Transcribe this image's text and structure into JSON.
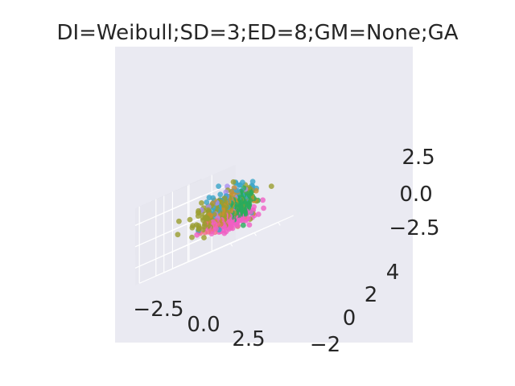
{
  "chart_data": {
    "type": "scatter",
    "projection": "3d",
    "title": "DI=Weibull;SD=3;ED=8;GM=None;GA",
    "xlabel": "",
    "ylabel": "",
    "zlabel": "",
    "x_ticks": [
      "−2.5",
      "0.0",
      "2.5"
    ],
    "y_ticks": [
      "−2",
      "0",
      "2",
      "4"
    ],
    "z_ticks": [
      "−2.5",
      "0.0",
      "2.5"
    ],
    "xlim": [
      -5,
      5.5
    ],
    "ylim": [
      -2.5,
      5.5
    ],
    "zlim": [
      -4.5,
      4.5
    ],
    "grid": true,
    "colors": {
      "background": "#eaeaf2",
      "grid": "#ffffff",
      "text": "#262626"
    },
    "series": [
      {
        "color": "#2bab5c",
        "cx": -3.0,
        "cy": 0.5,
        "cz": -0.6,
        "sx": 0.35,
        "sy": 0.5,
        "sz": 0.7,
        "count": 140
      },
      {
        "color": "#3aa5c8",
        "cx": -1.3,
        "cy": 0.9,
        "cz": 0.3,
        "sx": 1.1,
        "sy": 0.9,
        "sz": 0.9,
        "count": 80
      },
      {
        "color": "#9a9e2e",
        "cx": -1.0,
        "cy": 0.8,
        "cz": -0.3,
        "sx": 1.4,
        "sy": 1.0,
        "sz": 0.9,
        "count": 150
      },
      {
        "color": "#c89030",
        "cx": -1.6,
        "cy": 0.9,
        "cz": -0.3,
        "sx": 1.0,
        "sy": 0.9,
        "sz": 0.9,
        "count": 90
      },
      {
        "color": "#f05fc4",
        "cx": -1.8,
        "cy": 0.8,
        "cz": -2.0,
        "sx": 1.0,
        "sy": 0.9,
        "sz": 0.5,
        "count": 110
      },
      {
        "color": "#f36b84",
        "cx": -0.6,
        "cy": 0.9,
        "cz": -1.6,
        "sx": 1.0,
        "sy": 0.8,
        "sz": 0.5,
        "count": 45
      },
      {
        "color": "#a88cf0",
        "cx": -1.0,
        "cy": 1.2,
        "cz": 0.6,
        "sx": 1.0,
        "sy": 1.0,
        "sz": 0.8,
        "count": 18
      }
    ]
  }
}
